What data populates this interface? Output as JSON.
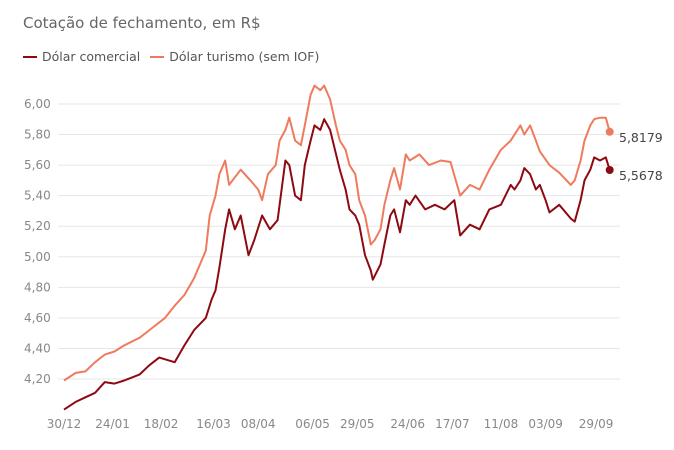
{
  "subtitle": "Cotação de fechamento, em R$",
  "chart_data": {
    "type": "line",
    "title": "",
    "subtitle": "Cotação de fechamento, em R$",
    "xlabel": "",
    "ylabel": "",
    "x_unit": "days since 30/12",
    "ylim": [
      3.97,
      6.15
    ],
    "grid": true,
    "legend_position": "top-left",
    "yticks": [
      4.2,
      4.4,
      4.6,
      4.8,
      5.0,
      5.2,
      5.4,
      5.6,
      5.8,
      6.0
    ],
    "ytick_labels": [
      "4,20",
      "4,40",
      "4,60",
      "4,80",
      "5,00",
      "5,20",
      "5,40",
      "5,60",
      "5,80",
      "6,00"
    ],
    "xticks": [
      0,
      25,
      50,
      77,
      100,
      128,
      151,
      177,
      200,
      225,
      248,
      274
    ],
    "xtick_labels": [
      "30/12",
      "24/01",
      "18/02",
      "16/03",
      "08/04",
      "06/05",
      "29/05",
      "24/06",
      "17/07",
      "11/08",
      "03/09",
      "29/09"
    ],
    "series": [
      {
        "name": "Dólar comercial",
        "color": "#8e0a12",
        "end_label": "5,5678",
        "points": [
          [
            0,
            4.0
          ],
          [
            6,
            4.05
          ],
          [
            11,
            4.08
          ],
          [
            16,
            4.11
          ],
          [
            21,
            4.18
          ],
          [
            26,
            4.17
          ],
          [
            31,
            4.19
          ],
          [
            39,
            4.23
          ],
          [
            44,
            4.29
          ],
          [
            49,
            4.34
          ],
          [
            57,
            4.31
          ],
          [
            62,
            4.42
          ],
          [
            67,
            4.52
          ],
          [
            73,
            4.6
          ],
          [
            76,
            4.72
          ],
          [
            78,
            4.78
          ],
          [
            80,
            4.93
          ],
          [
            83,
            5.18
          ],
          [
            85,
            5.31
          ],
          [
            88,
            5.18
          ],
          [
            91,
            5.27
          ],
          [
            95,
            5.01
          ],
          [
            98,
            5.11
          ],
          [
            102,
            5.27
          ],
          [
            106,
            5.18
          ],
          [
            110,
            5.24
          ],
          [
            114,
            5.63
          ],
          [
            116,
            5.6
          ],
          [
            119,
            5.4
          ],
          [
            122,
            5.37
          ],
          [
            124,
            5.6
          ],
          [
            127,
            5.76
          ],
          [
            129,
            5.86
          ],
          [
            132,
            5.83
          ],
          [
            134,
            5.9
          ],
          [
            137,
            5.83
          ],
          [
            142,
            5.57
          ],
          [
            145,
            5.44
          ],
          [
            147,
            5.31
          ],
          [
            150,
            5.27
          ],
          [
            152,
            5.21
          ],
          [
            155,
            5.01
          ],
          [
            158,
            4.91
          ],
          [
            159,
            4.85
          ],
          [
            163,
            4.95
          ],
          [
            165,
            5.08
          ],
          [
            168,
            5.27
          ],
          [
            170,
            5.31
          ],
          [
            173,
            5.16
          ],
          [
            176,
            5.37
          ],
          [
            178,
            5.34
          ],
          [
            181,
            5.4
          ],
          [
            186,
            5.31
          ],
          [
            191,
            5.34
          ],
          [
            196,
            5.31
          ],
          [
            201,
            5.37
          ],
          [
            204,
            5.14
          ],
          [
            209,
            5.21
          ],
          [
            214,
            5.18
          ],
          [
            219,
            5.31
          ],
          [
            225,
            5.34
          ],
          [
            230,
            5.47
          ],
          [
            232,
            5.44
          ],
          [
            235,
            5.5
          ],
          [
            237,
            5.58
          ],
          [
            240,
            5.54
          ],
          [
            243,
            5.44
          ],
          [
            245,
            5.47
          ],
          [
            248,
            5.37
          ],
          [
            250,
            5.29
          ],
          [
            255,
            5.34
          ],
          [
            261,
            5.25
          ],
          [
            263,
            5.23
          ],
          [
            266,
            5.37
          ],
          [
            268,
            5.5
          ],
          [
            271,
            5.57
          ],
          [
            273,
            5.65
          ],
          [
            276,
            5.63
          ],
          [
            279,
            5.65
          ],
          [
            281,
            5.5678
          ]
        ]
      },
      {
        "name": "Dólar turismo (sem IOF)",
        "color": "#ef7b5e",
        "end_label": "5,8179",
        "points": [
          [
            0,
            4.19
          ],
          [
            6,
            4.24
          ],
          [
            11,
            4.25
          ],
          [
            16,
            4.31
          ],
          [
            21,
            4.36
          ],
          [
            26,
            4.38
          ],
          [
            31,
            4.42
          ],
          [
            39,
            4.47
          ],
          [
            44,
            4.52
          ],
          [
            52,
            4.6
          ],
          [
            57,
            4.68
          ],
          [
            62,
            4.75
          ],
          [
            67,
            4.86
          ],
          [
            73,
            5.04
          ],
          [
            75,
            5.27
          ],
          [
            78,
            5.4
          ],
          [
            80,
            5.54
          ],
          [
            83,
            5.63
          ],
          [
            85,
            5.47
          ],
          [
            91,
            5.57
          ],
          [
            96,
            5.5
          ],
          [
            100,
            5.44
          ],
          [
            102,
            5.37
          ],
          [
            105,
            5.54
          ],
          [
            109,
            5.6
          ],
          [
            111,
            5.76
          ],
          [
            114,
            5.83
          ],
          [
            116,
            5.91
          ],
          [
            119,
            5.76
          ],
          [
            122,
            5.73
          ],
          [
            124,
            5.86
          ],
          [
            127,
            6.06
          ],
          [
            129,
            6.12
          ],
          [
            132,
            6.09
          ],
          [
            134,
            6.12
          ],
          [
            137,
            6.03
          ],
          [
            140,
            5.86
          ],
          [
            142,
            5.76
          ],
          [
            145,
            5.7
          ],
          [
            147,
            5.6
          ],
          [
            150,
            5.54
          ],
          [
            152,
            5.37
          ],
          [
            155,
            5.27
          ],
          [
            158,
            5.08
          ],
          [
            160,
            5.11
          ],
          [
            163,
            5.18
          ],
          [
            165,
            5.34
          ],
          [
            168,
            5.5
          ],
          [
            170,
            5.58
          ],
          [
            173,
            5.44
          ],
          [
            176,
            5.67
          ],
          [
            178,
            5.63
          ],
          [
            183,
            5.67
          ],
          [
            188,
            5.6
          ],
          [
            194,
            5.63
          ],
          [
            199,
            5.62
          ],
          [
            204,
            5.4
          ],
          [
            209,
            5.47
          ],
          [
            214,
            5.44
          ],
          [
            219,
            5.57
          ],
          [
            225,
            5.7
          ],
          [
            230,
            5.76
          ],
          [
            235,
            5.86
          ],
          [
            237,
            5.8
          ],
          [
            240,
            5.86
          ],
          [
            243,
            5.76
          ],
          [
            245,
            5.69
          ],
          [
            250,
            5.6
          ],
          [
            255,
            5.55
          ],
          [
            261,
            5.47
          ],
          [
            263,
            5.5
          ],
          [
            266,
            5.63
          ],
          [
            268,
            5.76
          ],
          [
            271,
            5.86
          ],
          [
            273,
            5.9
          ],
          [
            276,
            5.91
          ],
          [
            279,
            5.91
          ],
          [
            281,
            5.8179
          ]
        ]
      }
    ]
  }
}
